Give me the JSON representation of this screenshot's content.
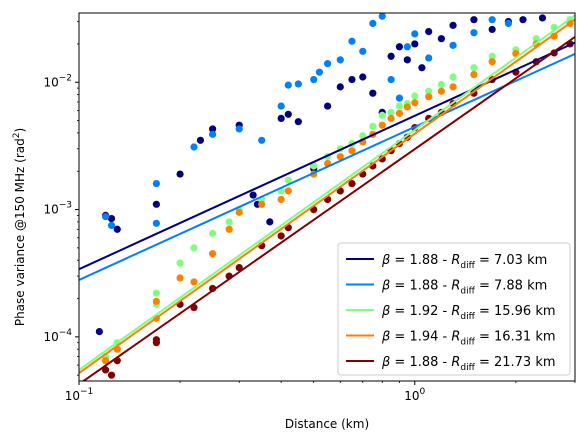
{
  "chart_data": {
    "type": "scatter",
    "xlabel": "Distance (km)",
    "ylabel_main": "Phase variance @150 MHz (rad",
    "ylabel_sup": "2",
    "ylabel_end": ")",
    "xscale": "log",
    "yscale": "log",
    "xlim": [
      0.1,
      3.0
    ],
    "ylim": [
      4.5e-05,
      0.035
    ],
    "x_ticks": [
      {
        "value": 0.1,
        "base": "10",
        "exp": "−1"
      },
      {
        "value": 1.0,
        "base": "10",
        "exp": "0"
      }
    ],
    "y_ticks": [
      {
        "value": 0.0001,
        "base": "10",
        "exp": "−4"
      },
      {
        "value": 0.001,
        "base": "10",
        "exp": "−3"
      },
      {
        "value": 0.01,
        "base": "10",
        "exp": "−2"
      }
    ],
    "legend_position": "lower-right",
    "series": [
      {
        "color": "#00007f",
        "beta": "1.88",
        "rdiff": "7.03",
        "legend_label": "β = 1.88 - Rdiff = 7.03 km",
        "fit": {
          "x": [
            0.1,
            3.0
          ],
          "y": [
            0.00034,
            0.0205
          ]
        },
        "points": [
          [
            0.115,
            0.00011
          ],
          [
            0.12,
            0.0009
          ],
          [
            0.125,
            0.00085
          ],
          [
            0.13,
            0.0007
          ],
          [
            0.17,
            0.0011
          ],
          [
            0.2,
            0.0019
          ],
          [
            0.23,
            0.0035
          ],
          [
            0.25,
            0.0043
          ],
          [
            0.3,
            0.0046
          ],
          [
            0.33,
            0.0013
          ],
          [
            0.34,
            0.0011
          ],
          [
            0.37,
            0.0008
          ],
          [
            0.4,
            0.0052
          ],
          [
            0.42,
            0.0056
          ],
          [
            0.45,
            0.0049
          ],
          [
            0.5,
            0.0021
          ],
          [
            0.55,
            0.0065
          ],
          [
            0.6,
            0.0092
          ],
          [
            0.65,
            0.0105
          ],
          [
            0.7,
            0.011
          ],
          [
            0.75,
            0.0082
          ],
          [
            0.8,
            0.0058
          ],
          [
            0.85,
            0.016
          ],
          [
            0.9,
            0.019
          ],
          [
            0.95,
            0.015
          ],
          [
            1.0,
            0.02
          ],
          [
            1.05,
            0.013
          ],
          [
            1.1,
            0.025
          ],
          [
            1.2,
            0.022
          ],
          [
            1.3,
            0.028
          ],
          [
            1.5,
            0.031
          ],
          [
            1.7,
            0.026
          ],
          [
            1.9,
            0.03
          ],
          [
            2.1,
            0.031
          ],
          [
            2.4,
            0.032
          ]
        ]
      },
      {
        "color": "#007fff",
        "beta": "1.88",
        "rdiff": "7.88",
        "legend_label": "β = 1.88 - Rdiff = 7.88 km",
        "fit": {
          "x": [
            0.1,
            3.0
          ],
          "y": [
            0.00028,
            0.0167
          ]
        },
        "points": [
          [
            0.12,
            0.00088
          ],
          [
            0.125,
            0.00075
          ],
          [
            0.17,
            0.0016
          ],
          [
            0.17,
            0.00078
          ],
          [
            0.22,
            0.0031
          ],
          [
            0.25,
            0.0039
          ],
          [
            0.3,
            0.0043
          ],
          [
            0.35,
            0.0035
          ],
          [
            0.4,
            0.0065
          ],
          [
            0.42,
            0.0095
          ],
          [
            0.45,
            0.0097
          ],
          [
            0.5,
            0.0105
          ],
          [
            0.52,
            0.012
          ],
          [
            0.55,
            0.014
          ],
          [
            0.6,
            0.015
          ],
          [
            0.65,
            0.021
          ],
          [
            0.7,
            0.0175
          ],
          [
            0.75,
            0.029
          ],
          [
            0.8,
            0.033
          ],
          [
            0.85,
            0.0105
          ],
          [
            0.9,
            0.0075
          ],
          [
            0.95,
            0.019
          ],
          [
            1.0,
            0.024
          ],
          [
            1.1,
            0.0155
          ],
          [
            1.3,
            0.0195
          ],
          [
            1.5,
            0.0245
          ],
          [
            1.7,
            0.031
          ],
          [
            1.9,
            0.029
          ]
        ]
      },
      {
        "color": "#7fff7f",
        "beta": "1.92",
        "rdiff": "15.96",
        "legend_label": "β = 1.92 - Rdiff = 15.96 km",
        "fit": {
          "x": [
            0.1,
            3.0
          ],
          "y": [
            5.5e-05,
            0.0335
          ]
        },
        "points": [
          [
            0.12,
            7e-05
          ],
          [
            0.13,
            9e-05
          ],
          [
            0.17,
            0.00022
          ],
          [
            0.17,
            0.00018
          ],
          [
            0.2,
            0.00038
          ],
          [
            0.22,
            0.0005
          ],
          [
            0.25,
            0.00065
          ],
          [
            0.28,
            0.0008
          ],
          [
            0.3,
            0.001
          ],
          [
            0.35,
            0.0012
          ],
          [
            0.4,
            0.0014
          ],
          [
            0.42,
            0.0017
          ],
          [
            0.5,
            0.0022
          ],
          [
            0.55,
            0.0026
          ],
          [
            0.6,
            0.003
          ],
          [
            0.65,
            0.0033
          ],
          [
            0.7,
            0.0038
          ],
          [
            0.75,
            0.0045
          ],
          [
            0.8,
            0.0055
          ],
          [
            0.85,
            0.0058
          ],
          [
            0.9,
            0.0065
          ],
          [
            0.95,
            0.0068
          ],
          [
            1.0,
            0.0078
          ],
          [
            1.1,
            0.0085
          ],
          [
            1.2,
            0.0096
          ],
          [
            1.3,
            0.011
          ],
          [
            1.5,
            0.013
          ],
          [
            1.7,
            0.016
          ],
          [
            2.0,
            0.018
          ],
          [
            2.3,
            0.022
          ],
          [
            2.6,
            0.027
          ],
          [
            2.9,
            0.031
          ]
        ]
      },
      {
        "color": "#ff7f00",
        "beta": "1.94",
        "rdiff": "16.31",
        "legend_label": "β = 1.94 - Rdiff = 16.31 km",
        "fit": {
          "x": [
            0.1,
            3.0
          ],
          "y": [
            5.2e-05,
            0.0311
          ]
        },
        "points": [
          [
            0.12,
            6.5e-05
          ],
          [
            0.13,
            8e-05
          ],
          [
            0.17,
            0.00014
          ],
          [
            0.17,
            0.00019
          ],
          [
            0.2,
            0.00029
          ],
          [
            0.22,
            0.00027
          ],
          [
            0.25,
            0.00045
          ],
          [
            0.28,
            0.0007
          ],
          [
            0.3,
            0.00095
          ],
          [
            0.35,
            0.0011
          ],
          [
            0.4,
            0.0012
          ],
          [
            0.42,
            0.0014
          ],
          [
            0.5,
            0.0019
          ],
          [
            0.55,
            0.0023
          ],
          [
            0.6,
            0.0026
          ],
          [
            0.65,
            0.0029
          ],
          [
            0.7,
            0.0034
          ],
          [
            0.75,
            0.0039
          ],
          [
            0.8,
            0.0046
          ],
          [
            0.85,
            0.0052
          ],
          [
            0.9,
            0.0057
          ],
          [
            0.95,
            0.0064
          ],
          [
            1.0,
            0.0069
          ],
          [
            1.1,
            0.0077
          ],
          [
            1.2,
            0.0085
          ],
          [
            1.3,
            0.0092
          ],
          [
            1.5,
            0.0115
          ],
          [
            1.7,
            0.0145
          ],
          [
            2.0,
            0.0168
          ],
          [
            2.3,
            0.02
          ],
          [
            2.6,
            0.023
          ],
          [
            2.9,
            0.029
          ]
        ]
      },
      {
        "color": "#7f0000",
        "beta": "1.88",
        "rdiff": "21.73",
        "legend_label": "β = 1.88 - Rdiff = 21.73 km",
        "fit": {
          "x": [
            0.1,
            3.0
          ],
          "y": [
            4.25e-05,
            0.0227
          ]
        },
        "points": [
          [
            0.12,
            5.5e-05
          ],
          [
            0.125,
            5e-05
          ],
          [
            0.13,
            6.5e-05
          ],
          [
            0.17,
            9e-05
          ],
          [
            0.17,
            9.5e-05
          ],
          [
            0.2,
            0.00018
          ],
          [
            0.22,
            0.00017
          ],
          [
            0.25,
            0.00024
          ],
          [
            0.28,
            0.0003
          ],
          [
            0.3,
            0.00035
          ],
          [
            0.35,
            0.00052
          ],
          [
            0.4,
            0.00062
          ],
          [
            0.42,
            0.00072
          ],
          [
            0.5,
            0.001
          ],
          [
            0.55,
            0.0012
          ],
          [
            0.6,
            0.0014
          ],
          [
            0.65,
            0.0016
          ],
          [
            0.7,
            0.0019
          ],
          [
            0.75,
            0.0022
          ],
          [
            0.8,
            0.0025
          ],
          [
            0.85,
            0.0029
          ],
          [
            0.9,
            0.0033
          ],
          [
            0.95,
            0.0037
          ],
          [
            1.0,
            0.0044
          ],
          [
            1.1,
            0.0052
          ],
          [
            1.2,
            0.0058
          ],
          [
            1.3,
            0.0068
          ],
          [
            1.5,
            0.0082
          ],
          [
            1.7,
            0.0105
          ],
          [
            2.0,
            0.012
          ],
          [
            2.3,
            0.0145
          ],
          [
            2.6,
            0.017
          ],
          [
            2.9,
            0.02
          ]
        ]
      }
    ]
  }
}
